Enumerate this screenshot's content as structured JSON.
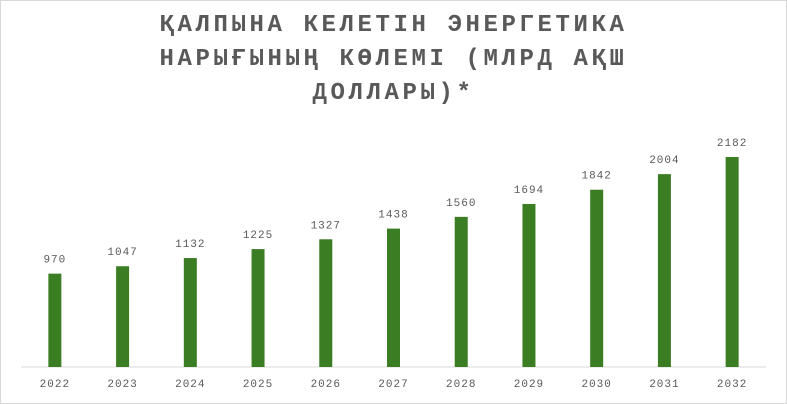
{
  "chart_data": {
    "type": "bar",
    "title": "ҚАЛПЫНА КЕЛЕТІН ЭНЕРГЕТИКА НАРЫҒЫНЫҢ КӨЛЕМІ (МЛРД АҚШ ДОЛЛАРЫ)*",
    "categories": [
      "2022",
      "2023",
      "2024",
      "2025",
      "2026",
      "2027",
      "2028",
      "2029",
      "2030",
      "2031",
      "2032"
    ],
    "values": [
      970,
      1047,
      1132,
      1225,
      1327,
      1438,
      1560,
      1694,
      1842,
      2004,
      2182
    ],
    "color": "#3a7d22"
  }
}
